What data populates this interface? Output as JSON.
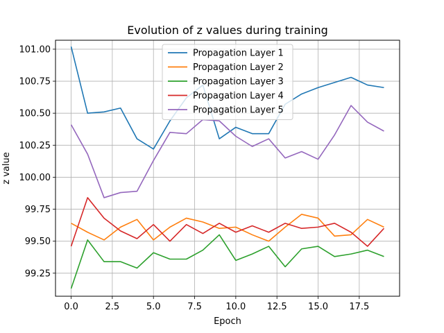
{
  "chart_data": {
    "type": "line",
    "title": "Evolution of z values during training",
    "xlabel": "Epoch",
    "ylabel": "z value",
    "xlim": [
      -0.95,
      19.95
    ],
    "ylim": [
      99.07,
      101.07
    ],
    "xticks": [
      0.0,
      2.5,
      5.0,
      7.5,
      10.0,
      12.5,
      15.0,
      17.5
    ],
    "xtick_labels": [
      "0.0",
      "2.5",
      "5.0",
      "7.5",
      "10.0",
      "12.5",
      "15.0",
      "17.5"
    ],
    "yticks": [
      99.25,
      99.5,
      99.75,
      100.0,
      100.25,
      100.5,
      100.75,
      101.0
    ],
    "ytick_labels": [
      "99.25",
      "99.50",
      "99.75",
      "100.00",
      "100.25",
      "100.50",
      "100.75",
      "101.00"
    ],
    "grid": true,
    "legend_position": "upper-center",
    "x": [
      0,
      1,
      2,
      3,
      4,
      5,
      6,
      7,
      8,
      9,
      10,
      11,
      12,
      13,
      14,
      15,
      16,
      17,
      18,
      19
    ],
    "series": [
      {
        "name": "Propagation Layer 1",
        "color": "#1f77b4",
        "values": [
          101.02,
          100.5,
          100.51,
          100.54,
          100.3,
          100.22,
          100.44,
          100.62,
          100.72,
          100.3,
          100.39,
          100.34,
          100.34,
          100.57,
          100.65,
          100.7,
          100.74,
          100.78,
          100.72,
          100.7
        ]
      },
      {
        "name": "Propagation Layer 2",
        "color": "#ff7f0e",
        "values": [
          99.64,
          99.57,
          99.51,
          99.61,
          99.67,
          99.51,
          99.61,
          99.68,
          99.65,
          99.6,
          99.61,
          99.55,
          99.5,
          99.61,
          99.71,
          99.68,
          99.54,
          99.55,
          99.67,
          99.61
        ]
      },
      {
        "name": "Propagation Layer 3",
        "color": "#2ca02c",
        "values": [
          99.13,
          99.51,
          99.34,
          99.34,
          99.29,
          99.41,
          99.36,
          99.36,
          99.43,
          99.55,
          99.35,
          99.4,
          99.46,
          99.3,
          99.44,
          99.46,
          99.38,
          99.4,
          99.43,
          99.38
        ]
      },
      {
        "name": "Propagation Layer 4",
        "color": "#d62728",
        "values": [
          99.46,
          99.84,
          99.68,
          99.58,
          99.52,
          99.63,
          99.5,
          99.63,
          99.56,
          99.64,
          99.57,
          99.62,
          99.57,
          99.64,
          99.6,
          99.61,
          99.64,
          99.57,
          99.46,
          99.6
        ]
      },
      {
        "name": "Propagation Layer 5",
        "color": "#9467bd",
        "values": [
          100.41,
          100.18,
          99.84,
          99.88,
          99.89,
          100.13,
          100.35,
          100.34,
          100.45,
          100.44,
          100.32,
          100.24,
          100.3,
          100.15,
          100.2,
          100.14,
          100.33,
          100.56,
          100.43,
          100.36
        ]
      }
    ]
  }
}
